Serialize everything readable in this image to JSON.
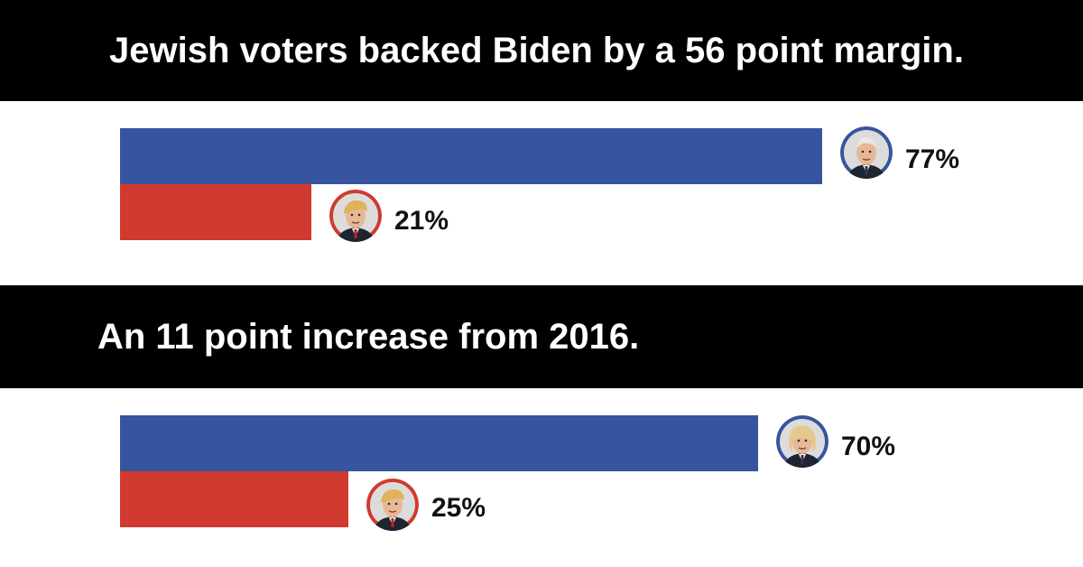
{
  "colors": {
    "dem": "#37559e",
    "rep": "#d03a2f",
    "banner_bg": "#000000",
    "banner_text": "#ffffff"
  },
  "chart_data": [
    {
      "type": "bar",
      "orientation": "horizontal",
      "title": "Jewish voters backed Biden by a 56 point margin.",
      "categories": [
        "Biden",
        "Trump"
      ],
      "values": [
        77,
        21
      ],
      "labels": [
        "77%",
        "21%"
      ],
      "colors": [
        "#37559e",
        "#d03a2f"
      ],
      "icons": [
        "biden-portrait-icon",
        "trump-portrait-icon"
      ],
      "xlim": [
        0,
        100
      ]
    },
    {
      "type": "bar",
      "orientation": "horizontal",
      "title": "An 11 point increase from 2016.",
      "categories": [
        "Clinton",
        "Trump"
      ],
      "values": [
        70,
        25
      ],
      "labels": [
        "70%",
        "25%"
      ],
      "colors": [
        "#37559e",
        "#d03a2f"
      ],
      "icons": [
        "clinton-portrait-icon",
        "trump-portrait-icon"
      ],
      "xlim": [
        0,
        100
      ]
    }
  ]
}
